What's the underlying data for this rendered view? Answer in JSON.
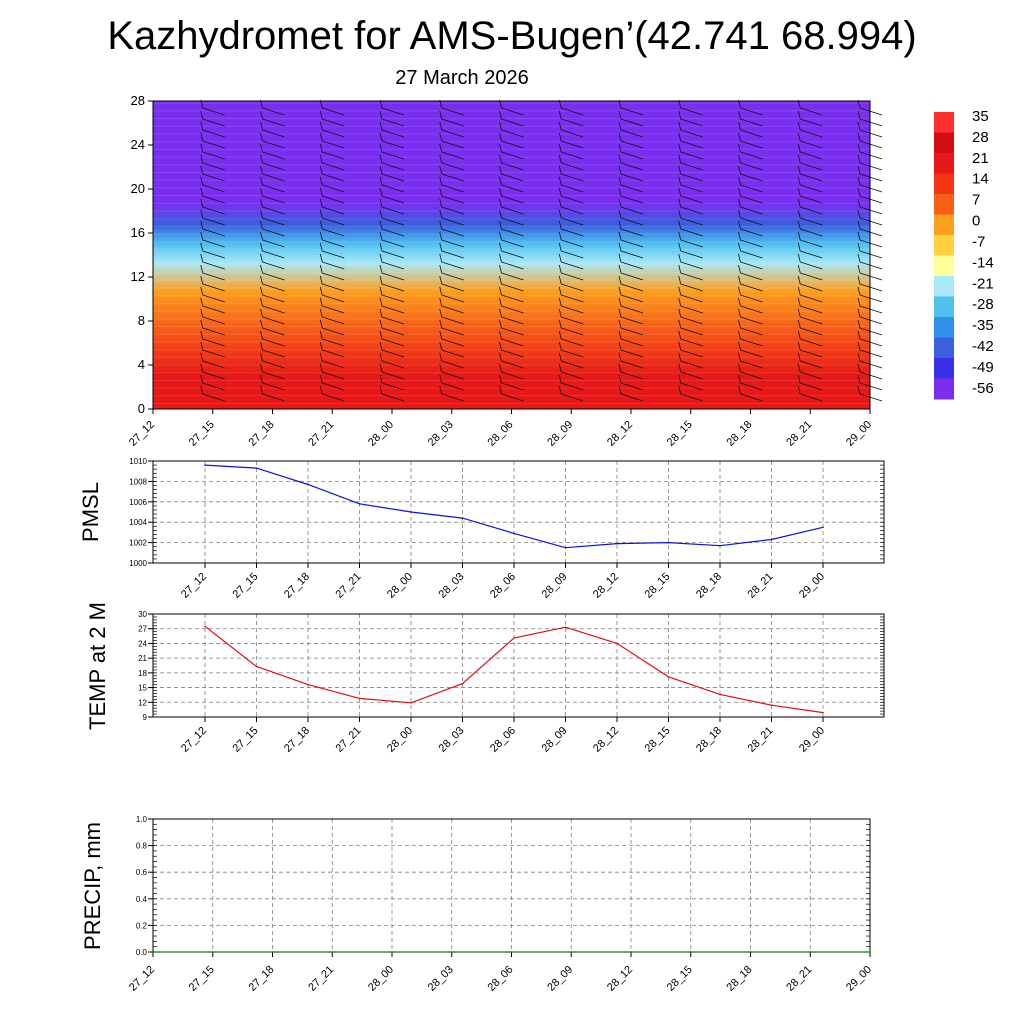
{
  "title": "Kazhydromet for AMS-Bugen’(42.741 68.994)",
  "subtitle": "27 March 2026",
  "colors": {
    "pmsl_line": "#1010e0",
    "temp_line": "#e01010",
    "precip_line": "#0a7a0a",
    "grid": "#808080"
  },
  "chart_data": [
    {
      "type": "heatmap",
      "name": "temperature-profile",
      "x": [
        "27_12",
        "27_15",
        "27_18",
        "27_21",
        "28_00",
        "28_03",
        "28_06",
        "28_09",
        "28_12",
        "28_15",
        "28_18",
        "28_21",
        "29_00"
      ],
      "ylim": [
        0,
        28
      ],
      "yticks": [
        0,
        4,
        8,
        12,
        16,
        20,
        24,
        28
      ],
      "colorbar": {
        "levels": [
          35,
          28,
          21,
          14,
          7,
          0,
          -7,
          -14,
          -21,
          -28,
          -35,
          -42,
          -49,
          -56
        ],
        "colors": [
          "#ff3030",
          "#d01010",
          "#e81818",
          "#f43414",
          "#f86018",
          "#fca020",
          "#ffd040",
          "#ffff99",
          "#a8e8f8",
          "#50c0f0",
          "#3090e8",
          "#3860e0",
          "#3a30e8",
          "#7a2ef0"
        ]
      },
      "bands": [
        {
          "from": 0,
          "to": 6,
          "value": 24
        },
        {
          "from": 6,
          "to": 9,
          "value": 12
        },
        {
          "from": 9,
          "to": 12.5,
          "value": 2
        },
        {
          "from": 12.5,
          "to": 14,
          "value": -16
        },
        {
          "from": 14,
          "to": 16,
          "value": -28
        },
        {
          "from": 16,
          "to": 17.5,
          "value": -42
        },
        {
          "from": 17.5,
          "to": 20,
          "value": -56
        },
        {
          "from": 20,
          "to": 28,
          "value": -60
        }
      ]
    },
    {
      "type": "line",
      "name": "pmsl",
      "ylabel": "PMSL",
      "x": [
        "27_12",
        "27_15",
        "27_18",
        "27_21",
        "28_00",
        "28_03",
        "28_06",
        "28_09",
        "28_12",
        "28_15",
        "28_18",
        "28_21",
        "29_00"
      ],
      "values": [
        1009.6,
        1009.3,
        1007.7,
        1005.8,
        1005.0,
        1004.4,
        1002.9,
        1001.5,
        1001.9,
        1002.0,
        1001.7,
        1002.3,
        1003.5
      ],
      "ylim": [
        1000,
        1010
      ],
      "yticks": [
        1000,
        1002,
        1004,
        1006,
        1008,
        1010
      ],
      "grid": true
    },
    {
      "type": "line",
      "name": "temp-2m",
      "ylabel": "TEMP at 2 M",
      "x": [
        "27_12",
        "27_15",
        "27_18",
        "27_21",
        "28_00",
        "28_03",
        "28_06",
        "28_09",
        "28_12",
        "28_15",
        "28_18",
        "28_21",
        "29_00"
      ],
      "values": [
        27.5,
        19.3,
        15.6,
        12.8,
        11.9,
        15.8,
        25.1,
        27.3,
        24.0,
        17.2,
        13.6,
        11.4,
        9.9
      ],
      "ylim": [
        9,
        30
      ],
      "yticks": [
        9,
        12,
        15,
        18,
        21,
        24,
        27,
        30
      ],
      "grid": true
    },
    {
      "type": "line",
      "name": "precip",
      "ylabel": "PRECIP, mm",
      "x": [
        "27_12",
        "27_15",
        "27_18",
        "27_21",
        "28_00",
        "28_03",
        "28_06",
        "28_09",
        "28_12",
        "28_15",
        "28_18",
        "28_21",
        "29_00"
      ],
      "values": [
        0,
        0,
        0,
        0,
        0,
        0,
        0,
        0,
        0,
        0,
        0,
        0,
        0
      ],
      "ylim": [
        0,
        1.0
      ],
      "yticks": [
        "0.0",
        "0.2",
        "0.4",
        "0.6",
        "0.8",
        "1.0"
      ],
      "grid": true
    }
  ]
}
